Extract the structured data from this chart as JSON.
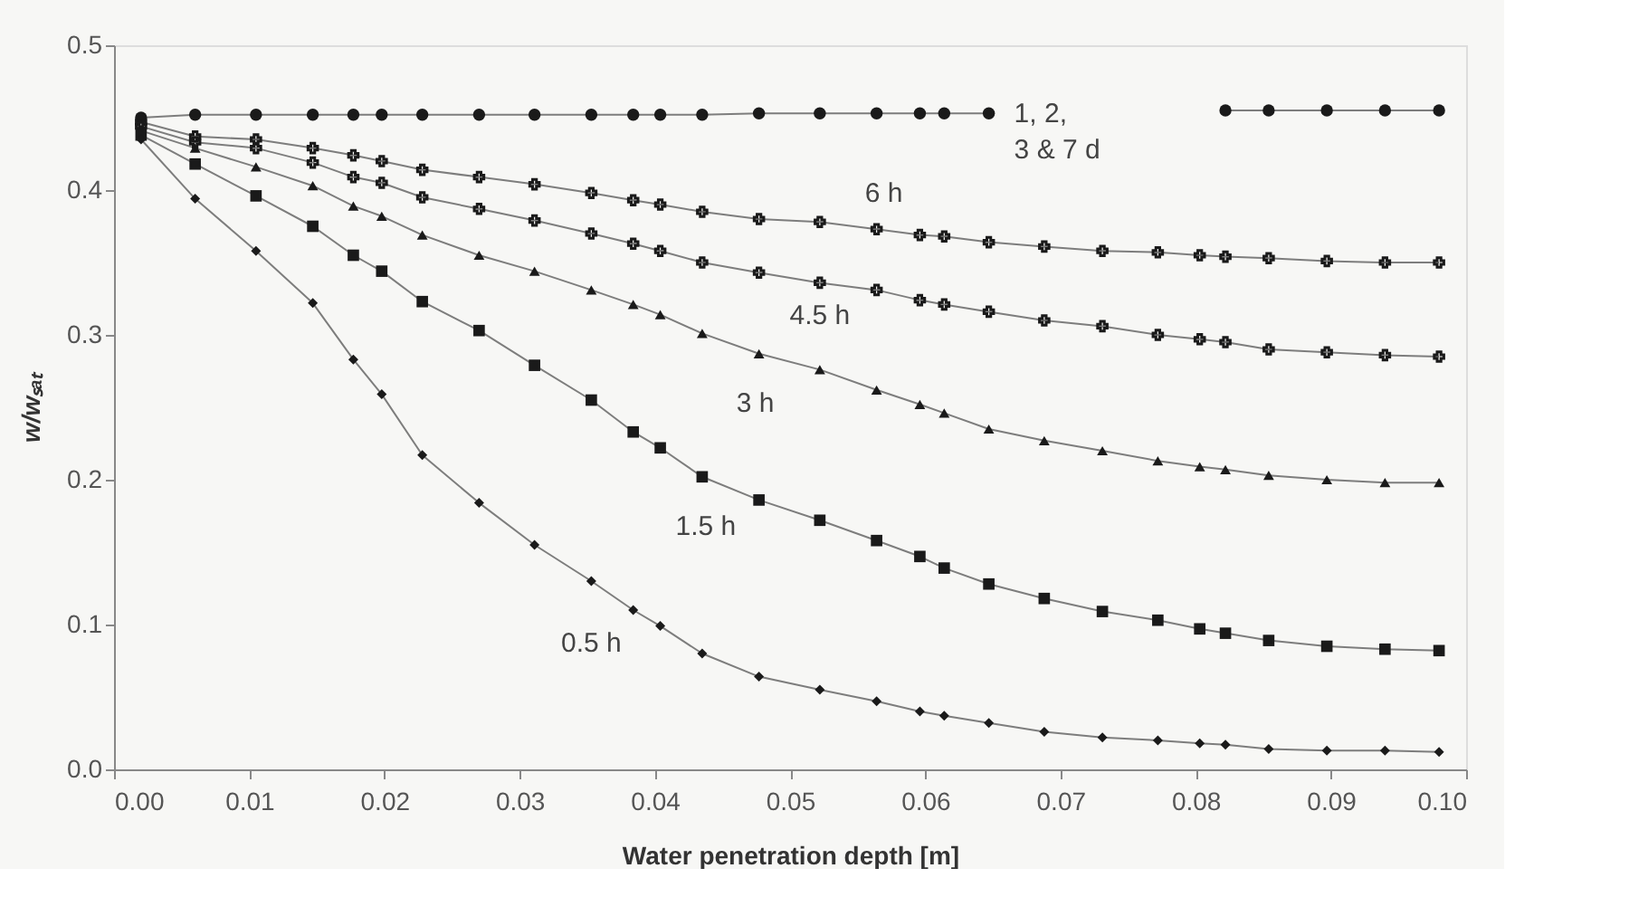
{
  "chart_data": {
    "type": "line",
    "xlabel": "Water penetration depth [m]",
    "ylabel": "w/wₛₐₜ",
    "x": [
      0.002,
      0.006,
      0.0105,
      0.0147,
      0.0177,
      0.0198,
      0.0228,
      0.027,
      0.0311,
      0.0353,
      0.0384,
      0.0404,
      0.0435,
      0.0477,
      0.0522,
      0.0564,
      0.0596,
      0.0614,
      0.0647,
      0.0688,
      0.0731,
      0.0772,
      0.0803,
      0.0822,
      0.0854,
      0.0897,
      0.094,
      0.098
    ],
    "series": [
      {
        "name": "1, 2,\n3 & 7 d",
        "color": "#1a1a1a",
        "marker": "circle",
        "values": [
          0.45,
          0.452,
          0.452,
          0.452,
          0.452,
          0.452,
          0.452,
          0.452,
          0.452,
          0.452,
          0.452,
          0.452,
          0.452,
          0.453,
          0.453,
          0.453,
          0.453,
          0.453,
          0.453,
          null,
          null,
          null,
          null,
          0.455,
          0.455,
          0.455,
          0.455,
          0.455
        ]
      },
      {
        "name": "6 h",
        "color": "#1a1a1a",
        "marker": "cross",
        "values": [
          0.447,
          0.437,
          0.435,
          0.429,
          0.424,
          0.42,
          0.414,
          0.409,
          0.404,
          0.398,
          0.393,
          0.39,
          0.385,
          0.38,
          0.378,
          0.373,
          0.369,
          0.368,
          0.364,
          0.361,
          0.358,
          0.357,
          0.355,
          0.354,
          0.353,
          0.351,
          0.35,
          0.35
        ]
      },
      {
        "name": "4.5 h",
        "color": "#1a1a1a",
        "marker": "cross",
        "values": [
          0.444,
          0.433,
          0.429,
          0.419,
          0.409,
          0.405,
          0.395,
          0.387,
          0.379,
          0.37,
          0.363,
          0.358,
          0.35,
          0.343,
          0.336,
          0.331,
          0.324,
          0.321,
          0.316,
          0.31,
          0.306,
          0.3,
          0.297,
          0.295,
          0.29,
          0.288,
          0.286,
          0.285
        ]
      },
      {
        "name": "3 h",
        "color": "#1a1a1a",
        "marker": "triangle",
        "values": [
          0.441,
          0.429,
          0.416,
          0.403,
          0.389,
          0.382,
          0.369,
          0.355,
          0.344,
          0.331,
          0.321,
          0.314,
          0.301,
          0.287,
          0.276,
          0.262,
          0.252,
          0.246,
          0.235,
          0.227,
          0.22,
          0.213,
          0.209,
          0.207,
          0.203,
          0.2,
          0.198,
          0.198
        ]
      },
      {
        "name": "1.5 h",
        "color": "#1a1a1a",
        "marker": "square",
        "values": [
          0.438,
          0.418,
          0.396,
          0.375,
          0.355,
          0.344,
          0.323,
          0.303,
          0.279,
          0.255,
          0.233,
          0.222,
          0.202,
          0.186,
          0.172,
          0.158,
          0.147,
          0.139,
          0.128,
          0.118,
          0.109,
          0.103,
          0.097,
          0.094,
          0.089,
          0.085,
          0.083,
          0.082
        ]
      },
      {
        "name": "0.5 h",
        "color": "#1a1a1a",
        "marker": "diamond",
        "values": [
          0.435,
          0.394,
          0.358,
          0.322,
          0.283,
          0.259,
          0.217,
          0.184,
          0.155,
          0.13,
          0.11,
          0.099,
          0.08,
          0.064,
          0.055,
          0.047,
          0.04,
          0.037,
          0.032,
          0.026,
          0.022,
          0.02,
          0.018,
          0.017,
          0.014,
          0.013,
          0.013,
          0.012
        ]
      }
    ],
    "xlim": [
      0,
      0.1
    ],
    "xticks": [
      {
        "value": 0,
        "label": "0.00"
      },
      {
        "value": 0.01,
        "label": "0.01"
      },
      {
        "value": 0.02,
        "label": "0.02"
      },
      {
        "value": 0.03,
        "label": "0.03"
      },
      {
        "value": 0.04,
        "label": "0.04"
      },
      {
        "value": 0.05,
        "label": "0.05"
      },
      {
        "value": 0.06,
        "label": "0.06"
      },
      {
        "value": 0.07,
        "label": "0.07"
      },
      {
        "value": 0.08,
        "label": "0.08"
      },
      {
        "value": 0.09,
        "label": "0.09"
      },
      {
        "value": 0.1,
        "label": "0.10"
      }
    ],
    "ylim": [
      0,
      0.5
    ],
    "yticks": [
      {
        "value": 0,
        "label": "0.0"
      },
      {
        "value": 0.1,
        "label": "0.1"
      },
      {
        "value": 0.2,
        "label": "0.2"
      },
      {
        "value": 0.3,
        "label": "0.3"
      },
      {
        "value": 0.4,
        "label": "0.4"
      },
      {
        "value": 0.5,
        "label": "0.5"
      }
    ],
    "grid": false,
    "line_style": "solid"
  }
}
